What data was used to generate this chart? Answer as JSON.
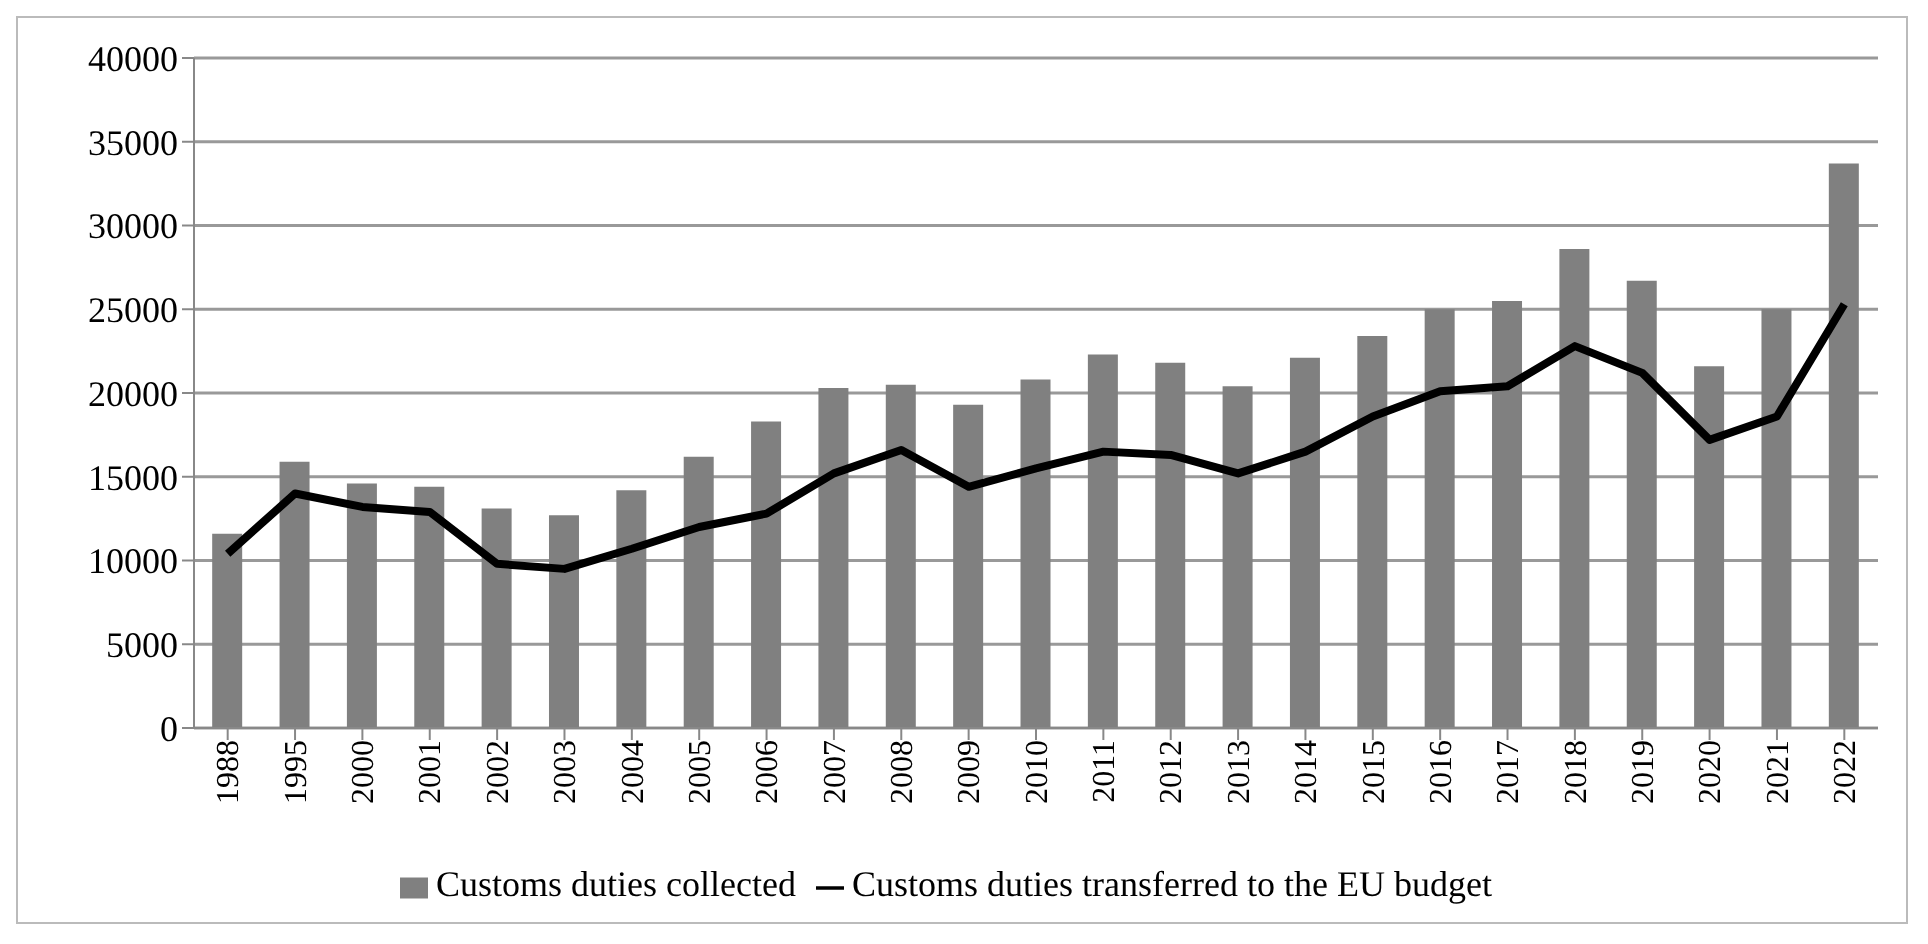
{
  "chart_data": {
    "type": "bar",
    "categories": [
      "1988",
      "1995",
      "2000",
      "2001",
      "2002",
      "2003",
      "2004",
      "2005",
      "2006",
      "2007",
      "2008",
      "2009",
      "2010",
      "2011",
      "2012",
      "2013",
      "2014",
      "2015",
      "2016",
      "2017",
      "2018",
      "2019",
      "2020",
      "2021",
      "2022"
    ],
    "series": [
      {
        "name": "Customs duties collected",
        "color": "#808080",
        "values": [
          11600,
          15900,
          14600,
          14400,
          13100,
          12700,
          14200,
          16200,
          18300,
          20300,
          20500,
          19300,
          20800,
          22300,
          21800,
          20400,
          22100,
          23400,
          25000,
          25500,
          28600,
          26700,
          21600,
          25000,
          33700
        ]
      },
      {
        "name": "Customs duties transferred to the EU budget",
        "type": "line",
        "color": "#000000",
        "values": [
          10400,
          14000,
          13200,
          12900,
          9800,
          9500,
          10700,
          12000,
          12800,
          15200,
          16600,
          14400,
          15500,
          16500,
          16300,
          15200,
          16500,
          18600,
          20100,
          20400,
          22800,
          21200,
          17200,
          18600,
          25300
        ]
      }
    ],
    "ylim": [
      0,
      40000
    ],
    "yticks": [
      0,
      5000,
      10000,
      15000,
      20000,
      25000,
      30000,
      35000,
      40000
    ],
    "grid": "y",
    "legend": "bottom",
    "marker": "none"
  }
}
